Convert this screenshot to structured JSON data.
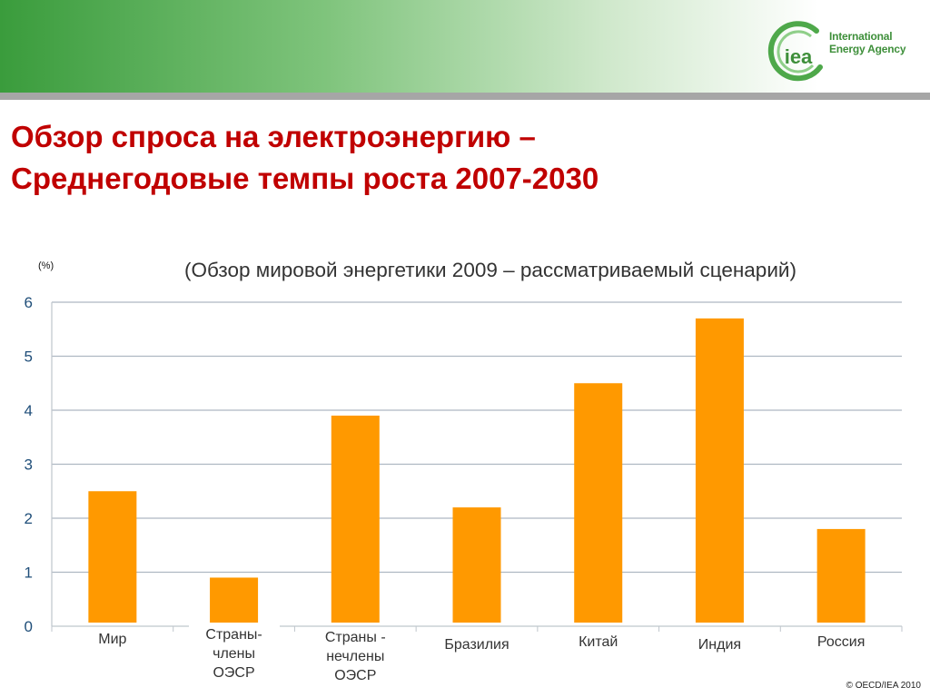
{
  "header": {
    "logo_mark": "iea",
    "logo_name_line1": "International",
    "logo_name_line2": "Energy Agency",
    "accent_color": "#3a9c3c"
  },
  "slide": {
    "title_line1": "Обзор спроса на электроэнергию –",
    "title_line2": "Среднегодовые темпы роста 2007-2030",
    "title_color": "#c00000",
    "copyright": "© OECD/IEA 2010"
  },
  "chart_data": {
    "type": "bar",
    "title": "(Обзор мировой энергетики 2009 – рассматриваемый сценарий)",
    "ylabel": "(%)",
    "xlabel": "",
    "ylim": [
      0,
      6
    ],
    "yticks": [
      0,
      1,
      2,
      3,
      4,
      5,
      6
    ],
    "grid": true,
    "bar_color": "#ff9900",
    "categories": [
      [
        "Мир"
      ],
      [
        "Страны-",
        "члены",
        "ОЭСР"
      ],
      [
        "Страны -",
        "нечлены",
        "ОЭСР"
      ],
      [
        "Бразилия"
      ],
      [
        "Китай"
      ],
      [
        "Индия"
      ],
      [
        "Россия"
      ]
    ],
    "values": [
      2.5,
      0.9,
      3.9,
      2.2,
      4.5,
      5.7,
      1.8
    ]
  }
}
